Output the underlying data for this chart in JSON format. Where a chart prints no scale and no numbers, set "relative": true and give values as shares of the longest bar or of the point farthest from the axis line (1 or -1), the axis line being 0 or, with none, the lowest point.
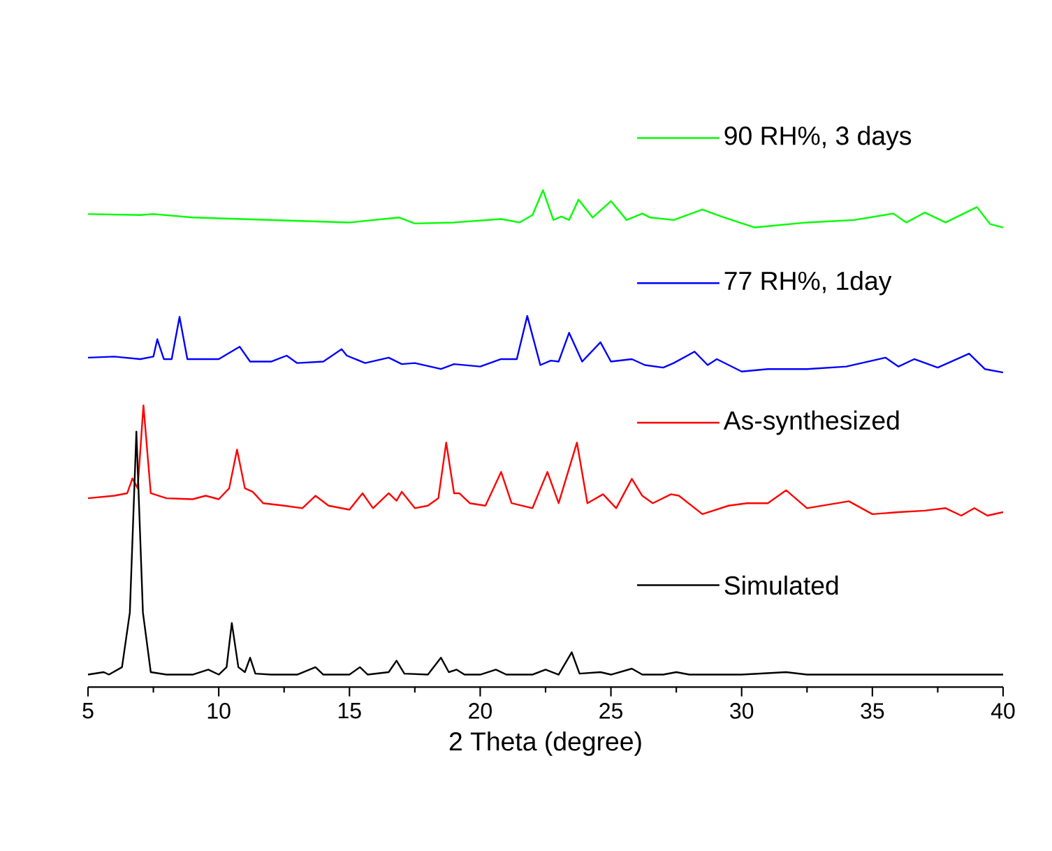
{
  "chart_data": {
    "type": "line",
    "xlabel": "2 Theta (degree)",
    "relative": true,
    "xlim": [
      5,
      40
    ],
    "xticks": [
      5,
      10,
      15,
      20,
      25,
      30,
      35,
      40
    ],
    "legend": "right",
    "grid": false,
    "marker": "none",
    "line_style": "solid",
    "series": [
      {
        "name": "90 RH%, 3 days",
        "color": "#00ff00",
        "x": [
          5,
          7,
          7.5,
          9,
          12,
          15,
          16.9,
          17.5,
          19,
          20.8,
          21.5,
          22.0,
          22.4,
          22.8,
          23.1,
          23.4,
          23.76,
          24.3,
          25.0,
          25.6,
          26.2,
          26.5,
          27.4,
          28.5,
          28.8,
          29.4,
          30.5,
          32.5,
          34.3,
          35.8,
          36.3,
          37.0,
          37.8,
          39.0,
          39.5,
          40
        ],
        "values": [
          0.952,
          0.95,
          0.952,
          0.945,
          0.94,
          0.935,
          0.945,
          0.933,
          0.935,
          0.942,
          0.935,
          0.95,
          1.0,
          0.94,
          0.947,
          0.94,
          0.981,
          0.945,
          0.978,
          0.94,
          0.953,
          0.945,
          0.94,
          0.961,
          0.955,
          0.944,
          0.925,
          0.935,
          0.94,
          0.953,
          0.935,
          0.955,
          0.935,
          0.966,
          0.932,
          0.925
        ]
      },
      {
        "name": "77 RH%, 1day",
        "color": "#0000ff",
        "x": [
          5,
          6,
          7,
          7.5,
          7.65,
          7.9,
          8.2,
          8.5,
          8.8,
          10,
          10.8,
          11.2,
          12,
          12.6,
          13,
          14,
          14.7,
          14.9,
          15.6,
          16.5,
          17,
          17.5,
          18.5,
          19,
          20,
          20.8,
          21.4,
          21.8,
          22.3,
          22.7,
          23,
          23.4,
          23.9,
          24.6,
          25,
          25.8,
          26.3,
          27,
          27.4,
          28.2,
          28.7,
          29.05,
          30,
          31,
          32.5,
          34,
          35.5,
          36,
          36.6,
          37.5,
          38.7,
          39.3,
          40
        ],
        "values": [
          0.663,
          0.665,
          0.66,
          0.665,
          0.7,
          0.66,
          0.66,
          0.745,
          0.66,
          0.66,
          0.685,
          0.655,
          0.655,
          0.667,
          0.652,
          0.655,
          0.68,
          0.667,
          0.652,
          0.663,
          0.65,
          0.652,
          0.64,
          0.65,
          0.645,
          0.66,
          0.66,
          0.747,
          0.648,
          0.657,
          0.655,
          0.713,
          0.655,
          0.694,
          0.655,
          0.66,
          0.648,
          0.643,
          0.652,
          0.675,
          0.648,
          0.66,
          0.635,
          0.64,
          0.64,
          0.645,
          0.663,
          0.645,
          0.66,
          0.643,
          0.671,
          0.64,
          0.633
        ]
      },
      {
        "name": "As-synthesized",
        "color": "#ff0000",
        "x": [
          5,
          6,
          6.5,
          6.7,
          6.9,
          7.12,
          7.4,
          8,
          9,
          9.5,
          10,
          10.4,
          10.7,
          11,
          11.3,
          11.7,
          12.5,
          13.2,
          13.7,
          14.2,
          15,
          15.5,
          15.9,
          16.5,
          16.8,
          17,
          17.5,
          18,
          18.4,
          18.7,
          19,
          19.2,
          19.6,
          20.2,
          20.8,
          21.2,
          22,
          22.57,
          23,
          23.7,
          24.1,
          24.7,
          25.2,
          25.8,
          26.2,
          26.6,
          27.3,
          27.6,
          28.5,
          29.5,
          30.2,
          31,
          31.7,
          32.5,
          34.1,
          35,
          36,
          37,
          37.8,
          38.4,
          38.9,
          39.4,
          40
        ],
        "values": [
          0.38,
          0.385,
          0.39,
          0.42,
          0.4,
          0.567,
          0.39,
          0.38,
          0.378,
          0.385,
          0.378,
          0.4,
          0.478,
          0.4,
          0.393,
          0.37,
          0.365,
          0.36,
          0.385,
          0.365,
          0.357,
          0.39,
          0.36,
          0.39,
          0.375,
          0.393,
          0.36,
          0.365,
          0.38,
          0.492,
          0.39,
          0.39,
          0.37,
          0.365,
          0.433,
          0.37,
          0.36,
          0.433,
          0.37,
          0.492,
          0.37,
          0.388,
          0.36,
          0.419,
          0.385,
          0.37,
          0.388,
          0.385,
          0.348,
          0.365,
          0.37,
          0.37,
          0.396,
          0.36,
          0.374,
          0.348,
          0.352,
          0.355,
          0.36,
          0.345,
          0.36,
          0.345,
          0.352
        ]
      },
      {
        "name": "Simulated",
        "color": "#000000",
        "x": [
          5,
          5.6,
          5.8,
          6.3,
          6.6,
          6.85,
          7.1,
          7.4,
          8,
          9,
          9.6,
          10,
          10.3,
          10.5,
          10.75,
          11,
          11.2,
          11.4,
          12,
          13,
          13.7,
          14,
          15,
          15.4,
          15.7,
          16.5,
          16.8,
          17.1,
          18,
          18.5,
          18.8,
          19.1,
          19.4,
          20,
          20.6,
          21,
          22,
          22.5,
          23,
          23.5,
          23.8,
          24.6,
          25,
          25.8,
          26.2,
          27,
          27.5,
          28,
          30,
          31.7,
          32.5,
          35,
          37.5,
          40
        ],
        "values": [
          0.025,
          0.03,
          0.025,
          0.04,
          0.15,
          0.514,
          0.15,
          0.03,
          0.025,
          0.025,
          0.035,
          0.025,
          0.04,
          0.129,
          0.04,
          0.03,
          0.059,
          0.027,
          0.025,
          0.025,
          0.04,
          0.025,
          0.025,
          0.04,
          0.025,
          0.03,
          0.053,
          0.027,
          0.025,
          0.059,
          0.03,
          0.035,
          0.025,
          0.025,
          0.035,
          0.025,
          0.025,
          0.035,
          0.025,
          0.07,
          0.027,
          0.03,
          0.025,
          0.037,
          0.025,
          0.025,
          0.03,
          0.025,
          0.025,
          0.03,
          0.025,
          0.025,
          0.025,
          0.025
        ]
      }
    ]
  }
}
